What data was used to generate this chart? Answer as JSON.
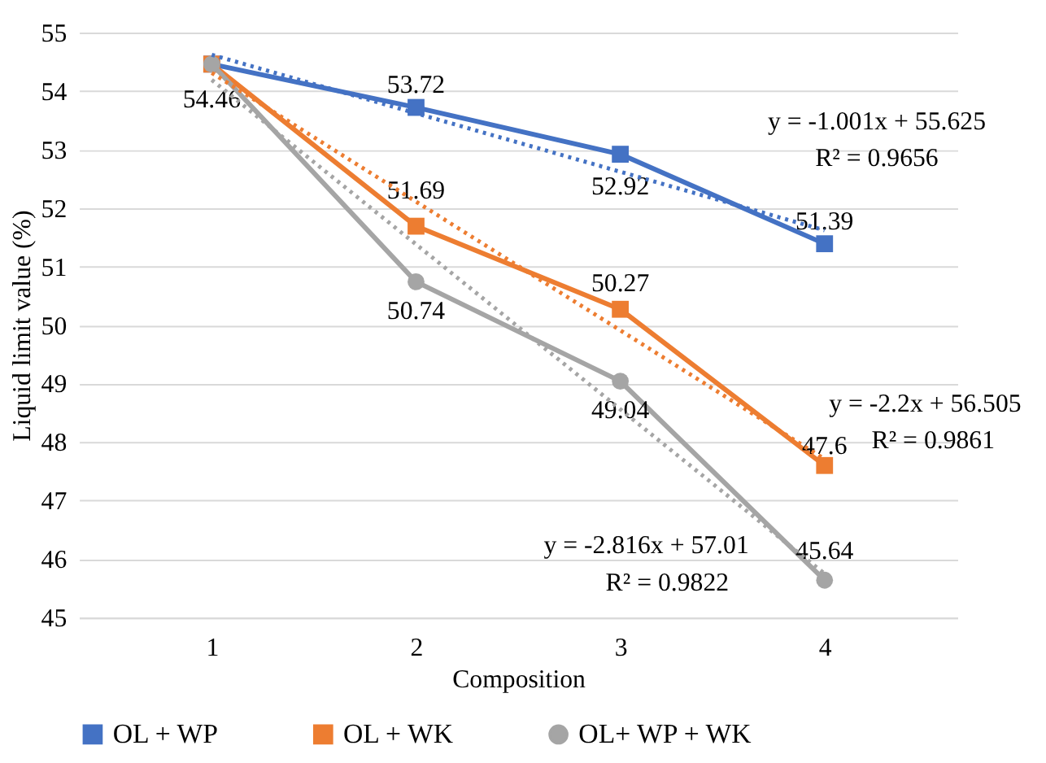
{
  "chart_data": {
    "type": "line",
    "xlabel": "Composition",
    "ylabel": "Liquid limit value (%)",
    "categories": [
      "1",
      "2",
      "3",
      "4"
    ],
    "ylim": [
      45,
      55
    ],
    "yticks": [
      45,
      46,
      47,
      48,
      49,
      50,
      51,
      52,
      53,
      54,
      55
    ],
    "grid": "y",
    "legend": "bottom",
    "series": [
      {
        "name": "OL + WP",
        "color": "#4472c4",
        "marker": "square",
        "line_style": "solid",
        "values": [
          54.46,
          53.72,
          52.92,
          51.39
        ],
        "value_labels": [
          "54.46",
          "53.72",
          "52.92",
          "51.39"
        ]
      },
      {
        "name": "OL + WK",
        "color": "#ed7d31",
        "marker": "square",
        "line_style": "solid",
        "values": [
          54.46,
          51.69,
          50.27,
          47.6
        ],
        "value_labels": [
          null,
          "51.69",
          "50.27",
          "47.6"
        ]
      },
      {
        "name": "OL+ WP + WK",
        "color": "#a5a5a5",
        "marker": "circle",
        "line_style": "solid",
        "values": [
          54.46,
          50.74,
          49.04,
          45.64
        ],
        "value_labels": [
          null,
          "50.74",
          "49.04",
          "45.64"
        ]
      },
      {
        "type": "line",
        "color": "#4472c4",
        "marker": "none",
        "line_style": "dotted",
        "x": [
          "1",
          "2",
          "3",
          "4"
        ],
        "values": [
          54.62,
          53.62,
          52.62,
          51.62
        ]
      },
      {
        "type": "line",
        "color": "#ed7d31",
        "marker": "none",
        "line_style": "dotted",
        "x": [
          "1",
          "2",
          "3",
          "4"
        ],
        "values": [
          54.31,
          52.11,
          49.91,
          47.71
        ]
      },
      {
        "type": "line",
        "color": "#a5a5a5",
        "marker": "none",
        "line_style": "dotted",
        "x": [
          "1",
          "2",
          "3",
          "4"
        ],
        "values": [
          54.19,
          51.38,
          48.56,
          45.75
        ]
      }
    ],
    "annotations": [
      "y = -1.001x + 55.625",
      "R² = 0.9656",
      "y = -2.2x + 56.505",
      "R² = 0.9861",
      "y = -2.816x + 57.01",
      "R² = 0.9822"
    ]
  }
}
